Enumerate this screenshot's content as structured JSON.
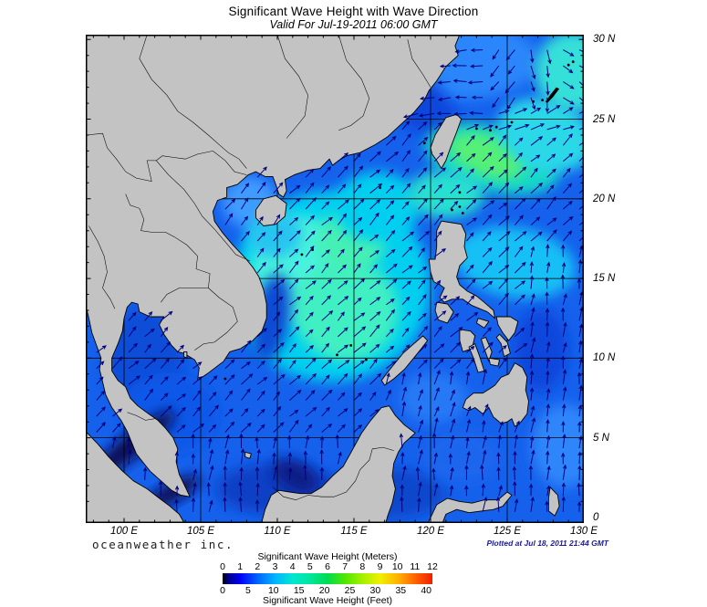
{
  "header": {
    "title": "Significant Wave Height with Wave Direction",
    "subtitle": "Valid For Jul-19-2011 06:00 GMT"
  },
  "map": {
    "lat_labels": [
      {
        "text": "30 N",
        "lat": 30
      },
      {
        "text": "25 N",
        "lat": 25
      },
      {
        "text": "20 N",
        "lat": 20
      },
      {
        "text": "15 N",
        "lat": 15
      },
      {
        "text": "10 N",
        "lat": 10
      },
      {
        "text": "5 N",
        "lat": 5
      },
      {
        "text": "0",
        "lat": 0
      }
    ],
    "lon_labels": [
      {
        "text": "100 E",
        "lon": 100
      },
      {
        "text": "105 E",
        "lon": 105
      },
      {
        "text": "110 E",
        "lon": 110
      },
      {
        "text": "115 E",
        "lon": 115
      },
      {
        "text": "120 E",
        "lon": 120
      },
      {
        "text": "125 E",
        "lon": 125
      },
      {
        "text": "130 E",
        "lon": 130
      }
    ],
    "grid_lons": [
      100,
      105,
      110,
      115,
      120,
      125
    ],
    "grid_lats": [
      5,
      10,
      15,
      20,
      25
    ]
  },
  "footer": {
    "brand": "oceanweather inc.",
    "plotted": "Plotted at Jul 18, 2011 21:44 GMT"
  },
  "colorbar": {
    "title_meters": "Significant Wave Height (Meters)",
    "title_feet": "Significant Wave Height (Feet)",
    "meters_ticks": [
      "0",
      "1",
      "2",
      "3",
      "4",
      "5",
      "6",
      "7",
      "8",
      "9",
      "10",
      "11",
      "12"
    ],
    "feet_ticks": [
      "0",
      "5",
      "10",
      "15",
      "20",
      "25",
      "30",
      "35",
      "40"
    ],
    "stops_m": [
      [
        0.0,
        "#000000"
      ],
      [
        0.3,
        "#000082"
      ],
      [
        1,
        "#0000f5"
      ],
      [
        2,
        "#0064ff"
      ],
      [
        3,
        "#00b4ff"
      ],
      [
        4,
        "#00e6d2"
      ],
      [
        5,
        "#00e69b"
      ],
      [
        6,
        "#00dc50"
      ],
      [
        7,
        "#50e600"
      ],
      [
        8,
        "#a5f000"
      ],
      [
        9,
        "#f0f000"
      ],
      [
        10,
        "#ffb400"
      ],
      [
        11,
        "#ff6400"
      ],
      [
        12,
        "#f01e00"
      ]
    ]
  },
  "chart_data": {
    "type": "heatmap",
    "title": "Significant Wave Height with Wave Direction",
    "valid_time": "Jul-19-2011 06:00 GMT",
    "units": [
      "Meters",
      "Feet"
    ],
    "lon_range": [
      97.5,
      130
    ],
    "lat_range": [
      -0.35,
      30.3
    ],
    "scale_range_m": [
      0,
      12
    ],
    "scale_range_ft": [
      0,
      40
    ],
    "ocean_base": {
      "color": "#1561ec",
      "value_m": 2.0
    },
    "land_color": "#c3c3c3",
    "arrow_color": "#00007d",
    "height_field": [
      {
        "area": "east-china-sea-light",
        "lon": 122.0,
        "lat": 28.7,
        "rx": 5.0,
        "ry": 2.5,
        "rot": 0,
        "color": "#2b86fa",
        "value_m": 2.5
      },
      {
        "area": "fujian-coast-darker",
        "lon": 119.0,
        "lat": 26.2,
        "rx": 3.5,
        "ry": 1.6,
        "rot": 40,
        "color": "#0d47dc",
        "value_m": 1.5
      },
      {
        "area": "central-scs-cyan",
        "lon": 113.5,
        "lat": 14.5,
        "rx": 6.5,
        "ry": 6.0,
        "rot": 0,
        "color": "#00cfef",
        "value_m": 3.0
      },
      {
        "area": "central-scs-bright-w",
        "lon": 111.5,
        "lat": 15.5,
        "rx": 3.2,
        "ry": 3.4,
        "rot": 0,
        "color": "#49f2dc",
        "value_m": 3.5
      },
      {
        "area": "central-scs-green-core",
        "lon": 114.5,
        "lat": 13.0,
        "rx": 3.4,
        "ry": 3.2,
        "rot": 0,
        "color": "#40efc2",
        "value_m": 4.0
      },
      {
        "area": "scs-green-patch-n",
        "lon": 114.8,
        "lat": 17.3,
        "rx": 2.2,
        "ry": 2.0,
        "rot": 0,
        "color": "#44f0b4",
        "value_m": 4.2
      },
      {
        "area": "luzon-strait-approach",
        "lon": 116.5,
        "lat": 19.5,
        "rx": 2.8,
        "ry": 2.2,
        "rot": 0,
        "color": "#00cfef",
        "value_m": 3.0
      },
      {
        "area": "east-taiwan-cyan",
        "lon": 124.0,
        "lat": 22.5,
        "rx": 4.5,
        "ry": 2.0,
        "rot": 15,
        "color": "#17d8c8",
        "value_m": 3.8
      },
      {
        "area": "east-taiwan-green-core",
        "lon": 123.7,
        "lat": 22.7,
        "rx": 2.6,
        "ry": 1.3,
        "rot": 18,
        "color": "#55f077",
        "value_m": 4.8
      },
      {
        "area": "ryukyu-ne-cyan",
        "lon": 127.5,
        "lat": 24.0,
        "rx": 3.2,
        "ry": 2.2,
        "rot": 20,
        "color": "#2bd8e8",
        "value_m": 3.5
      },
      {
        "area": "top-right-cyan",
        "lon": 129.3,
        "lat": 28.0,
        "rx": 2.5,
        "ry": 2.5,
        "rot": 0,
        "color": "#35e0d8",
        "value_m": 3.3
      },
      {
        "area": "philippine-sea-cyan",
        "lon": 125.5,
        "lat": 16.0,
        "rx": 4.0,
        "ry": 2.2,
        "rot": 10,
        "color": "#19bff5",
        "value_m": 2.8
      },
      {
        "area": "luzon-strait-cyan",
        "lon": 121.0,
        "lat": 20.3,
        "rx": 2.5,
        "ry": 1.5,
        "rot": 0,
        "color": "#28e0d0",
        "value_m": 3.6
      },
      {
        "area": "gulf-tonkin-light",
        "lon": 108.2,
        "lat": 19.8,
        "rx": 1.8,
        "ry": 1.6,
        "rot": 0,
        "color": "#3f9bff",
        "value_m": 2.4
      },
      {
        "area": "south-hainan-cyan",
        "lon": 109.8,
        "lat": 17.8,
        "rx": 1.8,
        "ry": 1.5,
        "rot": 0,
        "color": "#25c5f0",
        "value_m": 2.9
      },
      {
        "area": "vietnam-coast-band",
        "lon": 109.6,
        "lat": 12.5,
        "rx": 1.2,
        "ry": 2.8,
        "rot": 10,
        "color": "#0f4bd4",
        "value_m": 1.6
      },
      {
        "area": "gulf-thailand",
        "lon": 101.3,
        "lat": 9.8,
        "rx": 2.6,
        "ry": 3.4,
        "rot": 0,
        "color": "#0e4ed8",
        "value_m": 1.3
      },
      {
        "area": "south-scs",
        "lon": 103.0,
        "lat": 6.5,
        "rx": 3.2,
        "ry": 2.6,
        "rot": 0,
        "color": "#1159e8",
        "value_m": 1.7
      },
      {
        "area": "equator-dark-w",
        "lon": 110.0,
        "lat": 1.8,
        "rx": 4.0,
        "ry": 1.6,
        "rot": 0,
        "color": "#0a40c4",
        "value_m": 1.0
      },
      {
        "area": "equator-dark-e",
        "lon": 117.0,
        "lat": 1.5,
        "rx": 4.0,
        "ry": 1.6,
        "rot": 0,
        "color": "#0c46cc",
        "value_m": 1.1
      },
      {
        "area": "nw-borneo-dark",
        "lon": 111.2,
        "lat": 2.6,
        "rx": 1.6,
        "ry": 0.9,
        "rot": 30,
        "color": "#101a86",
        "value_m": 0.5
      },
      {
        "area": "sulu-sea",
        "lon": 120.2,
        "lat": 7.5,
        "rx": 2.2,
        "ry": 1.6,
        "rot": 0,
        "color": "#2579f5",
        "value_m": 2.2
      },
      {
        "area": "celebes-sea",
        "lon": 122.0,
        "lat": 3.8,
        "rx": 2.5,
        "ry": 1.6,
        "rot": 0,
        "color": "#1e66ee",
        "value_m": 1.8
      },
      {
        "area": "se-corner-light",
        "lon": 128.8,
        "lat": 4.5,
        "rx": 2.2,
        "ry": 2.6,
        "rot": 0,
        "color": "#2e86fa",
        "value_m": 2.3
      },
      {
        "area": "east-mindanao-dark",
        "lon": 127.2,
        "lat": 10.5,
        "rx": 1.8,
        "ry": 2.6,
        "rot": 0,
        "color": "#0d47dc",
        "value_m": 1.5
      },
      {
        "area": "malacca-strait-calm-n",
        "lon": 100.6,
        "lat": 4.6,
        "rx": 3.4,
        "ry": 0.75,
        "rot": -38,
        "color": "#111155",
        "value_m": 0.2
      },
      {
        "area": "malacca-strait-calm-s",
        "lon": 103.2,
        "lat": 1.6,
        "rx": 2.0,
        "ry": 0.6,
        "rot": -28,
        "color": "#111155",
        "value_m": 0.2
      }
    ],
    "wave_direction_regions": [
      {
        "name": "kuroshio-recurve-sw",
        "lon": [
          123.5,
          126.0
        ],
        "lat": [
          26.0,
          30.4
        ],
        "dir_deg": 235
      },
      {
        "name": "kuroshio-recurve-s",
        "lon": [
          126.0,
          128.2
        ],
        "lat": [
          26.0,
          30.4
        ],
        "dir_deg": 280
      },
      {
        "name": "kuroshio-recurve-se",
        "lon": [
          128.2,
          130.1
        ],
        "lat": [
          26.0,
          30.4
        ],
        "dir_deg": 325
      },
      {
        "name": "east-china-sea-westward",
        "lon": [
          116.0,
          123.5
        ],
        "lat": [
          25.3,
          30.4
        ],
        "dir_deg": 185
      },
      {
        "name": "ne-taiwan-transition",
        "lon": [
          121.5,
          130.1
        ],
        "lat": [
          24.3,
          26.0
        ],
        "dir_deg": 25
      },
      {
        "name": "philippine-sea-north",
        "lon": [
          126.3,
          130.1
        ],
        "lat": [
          4.5,
          17.0
        ],
        "dir_deg": 82
      },
      {
        "name": "sulu-celebes-north",
        "lon": [
          116.5,
          126.3
        ],
        "lat": [
          4.5,
          8.5
        ],
        "dir_deg": 75
      },
      {
        "name": "equatorial-north",
        "lon": [
          97.4,
          130.1
        ],
        "lat": [
          -0.6,
          4.5
        ],
        "dir_deg": 85
      },
      {
        "name": "gulf-of-tonkin-ne",
        "lon": [
          105.0,
          110.5
        ],
        "lat": [
          16.5,
          22.0
        ],
        "dir_deg": 55
      },
      {
        "name": "south-china-sea-default",
        "lon": [
          97.4,
          130.1
        ],
        "lat": [
          -0.6,
          30.4
        ],
        "dir_deg": 45
      }
    ]
  }
}
